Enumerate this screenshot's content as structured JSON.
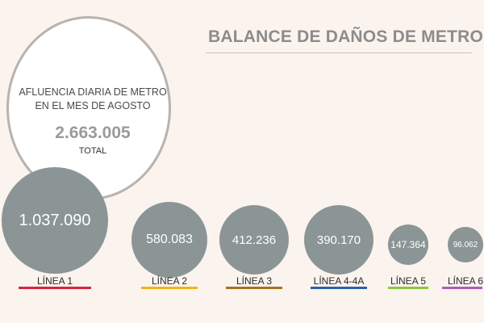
{
  "header": {
    "title": "BALANCE DE DAÑOS DE METRO"
  },
  "total": {
    "label_line1": "AFLUENCIA DIARIA DE METRO",
    "label_line2": "EN EL MES DE AGOSTO",
    "value": "2.663.005",
    "word": "TOTAL"
  },
  "chart_data": {
    "type": "bubble",
    "title": "BALANCE DE DAÑOS DE METRO",
    "total": 2663005,
    "categories": [
      "LÍNEA 1",
      "LÍNEA 2",
      "LÍNEA 3",
      "LÍNEA 4-4A",
      "LÍNEA 5",
      "LÍNEA 6"
    ],
    "values": [
      1037090,
      580083,
      412236,
      390170,
      147364,
      96062
    ],
    "value_labels": [
      "1.037.090",
      "580.083",
      "412.236",
      "390.170",
      "147.364",
      "96.062"
    ],
    "line_colors": [
      "#d6263a",
      "#f2b31c",
      "#a8711f",
      "#2a63a8",
      "#8cc63e",
      "#b05bb8"
    ],
    "bubble_color": "#8b9596"
  }
}
